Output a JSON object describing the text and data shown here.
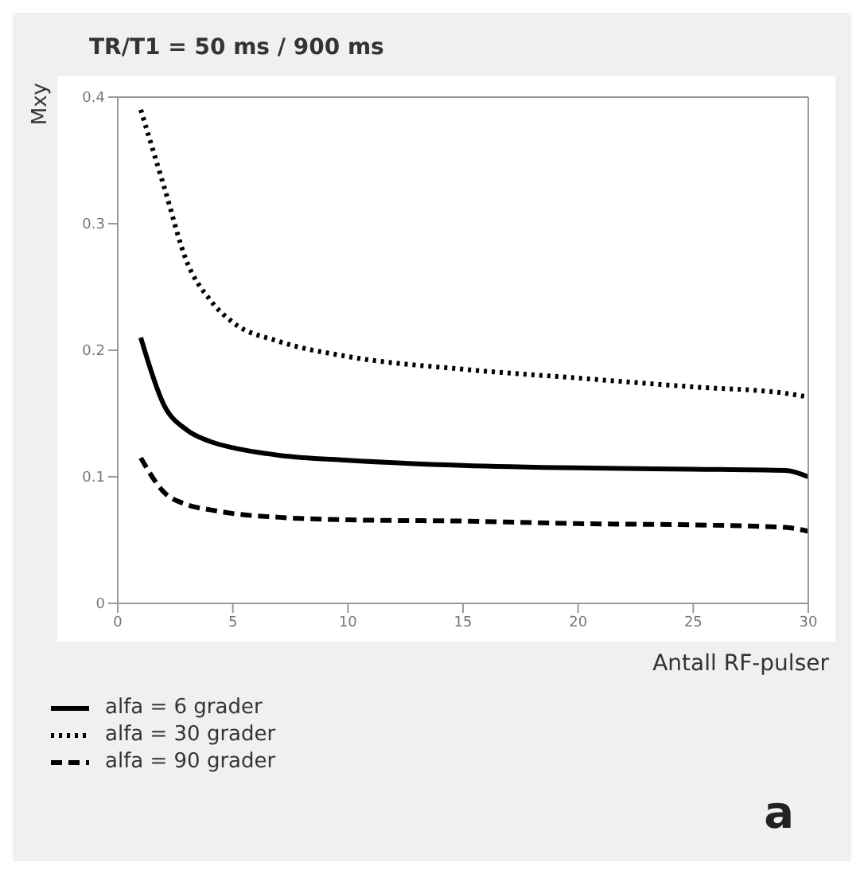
{
  "chart_data": {
    "type": "line",
    "title": "TR/T1 = 50 ms / 900 ms",
    "xlabel": "Antall RF-pulser",
    "ylabel": "Mxy",
    "x": [
      1,
      2,
      3,
      4,
      5,
      7,
      10,
      15,
      20,
      25,
      29,
      30
    ],
    "series": [
      {
        "name": "alfa = 6 grader",
        "color": "#000000",
        "line_style": "solid",
        "values": [
          0.21,
          0.157,
          0.137,
          0.128,
          0.123,
          0.117,
          0.113,
          0.109,
          0.107,
          0.106,
          0.105,
          0.1
        ]
      },
      {
        "name": "alfa = 30 grader",
        "color": "#000000",
        "line_style": "dotted",
        "values": [
          0.39,
          0.33,
          0.27,
          0.24,
          0.222,
          0.207,
          0.195,
          0.185,
          0.178,
          0.171,
          0.166,
          0.163
        ]
      },
      {
        "name": "alfa = 90 grader",
        "color": "#000000",
        "line_style": "dashed",
        "values": [
          0.115,
          0.088,
          0.078,
          0.074,
          0.071,
          0.068,
          0.066,
          0.065,
          0.063,
          0.062,
          0.06,
          0.057
        ]
      }
    ],
    "xlim": [
      0,
      30
    ],
    "xticks": [
      0,
      5,
      10,
      15,
      20,
      25,
      30
    ],
    "ylim": [
      0,
      0.4
    ],
    "yticks": [
      0,
      0.1,
      0.2,
      0.3,
      0.4
    ],
    "grid": false,
    "legend": "bottom left",
    "marker": "none",
    "annotations": [
      "a"
    ]
  }
}
